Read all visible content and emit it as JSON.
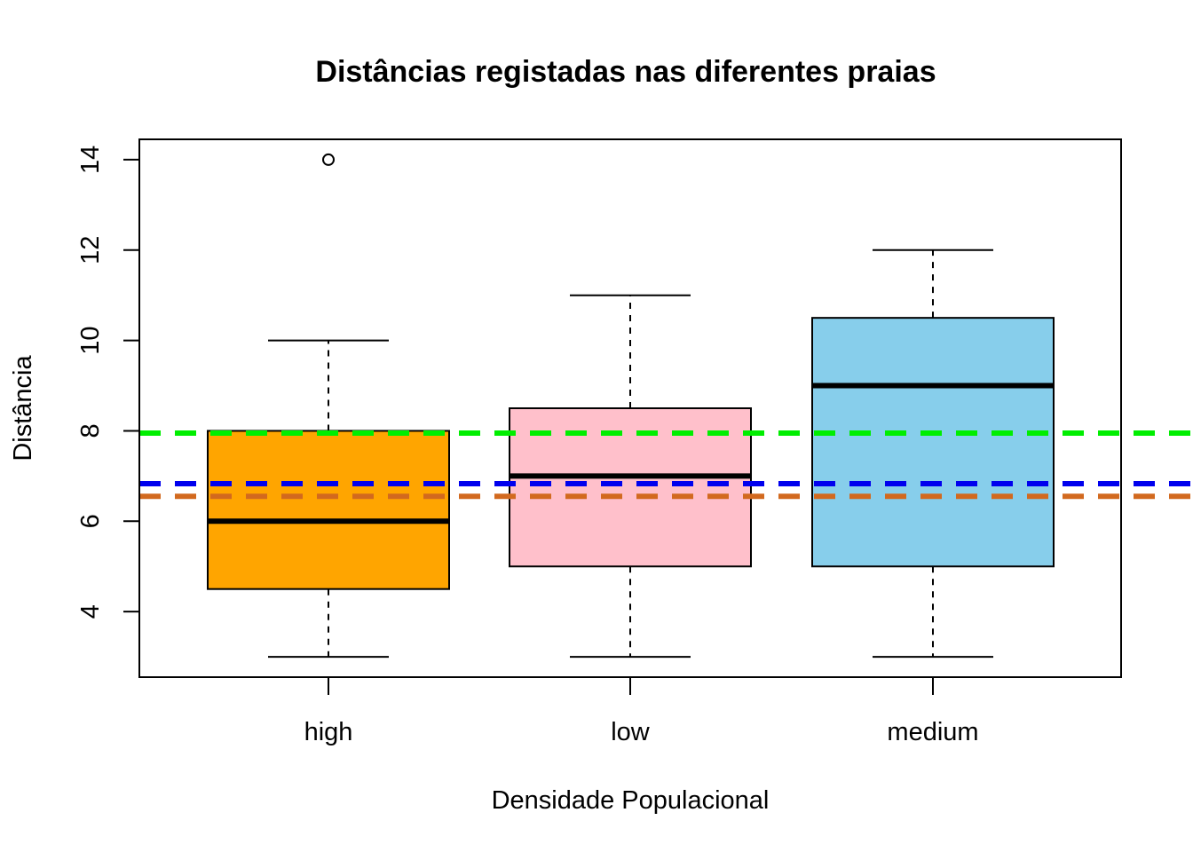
{
  "chart_data": {
    "type": "boxplot",
    "title": "Distâncias registadas nas diferentes praias",
    "xlabel": "Densidade Populacional",
    "ylabel": "Distância",
    "ylim": [
      2.55,
      14.45
    ],
    "y_ticks": [
      4,
      6,
      8,
      10,
      12,
      14
    ],
    "grid": false,
    "categories": [
      "high",
      "low",
      "medium"
    ],
    "boxes": [
      {
        "category": "high",
        "whisker_low": 3,
        "q1": 4.5,
        "median": 6,
        "q3": 8,
        "whisker_high": 10,
        "outliers": [
          14
        ],
        "fill": "#FFA500"
      },
      {
        "category": "low",
        "whisker_low": 3,
        "q1": 5,
        "median": 7,
        "q3": 8.5,
        "whisker_high": 11,
        "outliers": [],
        "fill": "#FFC0CB"
      },
      {
        "category": "medium",
        "whisker_low": 3,
        "q1": 5,
        "median": 9,
        "q3": 10.5,
        "whisker_high": 12,
        "outliers": [],
        "fill": "#87CEEB"
      }
    ],
    "reference_lines": [
      {
        "y": 7.95,
        "color": "#00EE00",
        "style": "dashed"
      },
      {
        "y": 6.83,
        "color": "#0000EE",
        "style": "dashed"
      },
      {
        "y": 6.55,
        "color": "#D2691E",
        "style": "dashed"
      }
    ]
  }
}
